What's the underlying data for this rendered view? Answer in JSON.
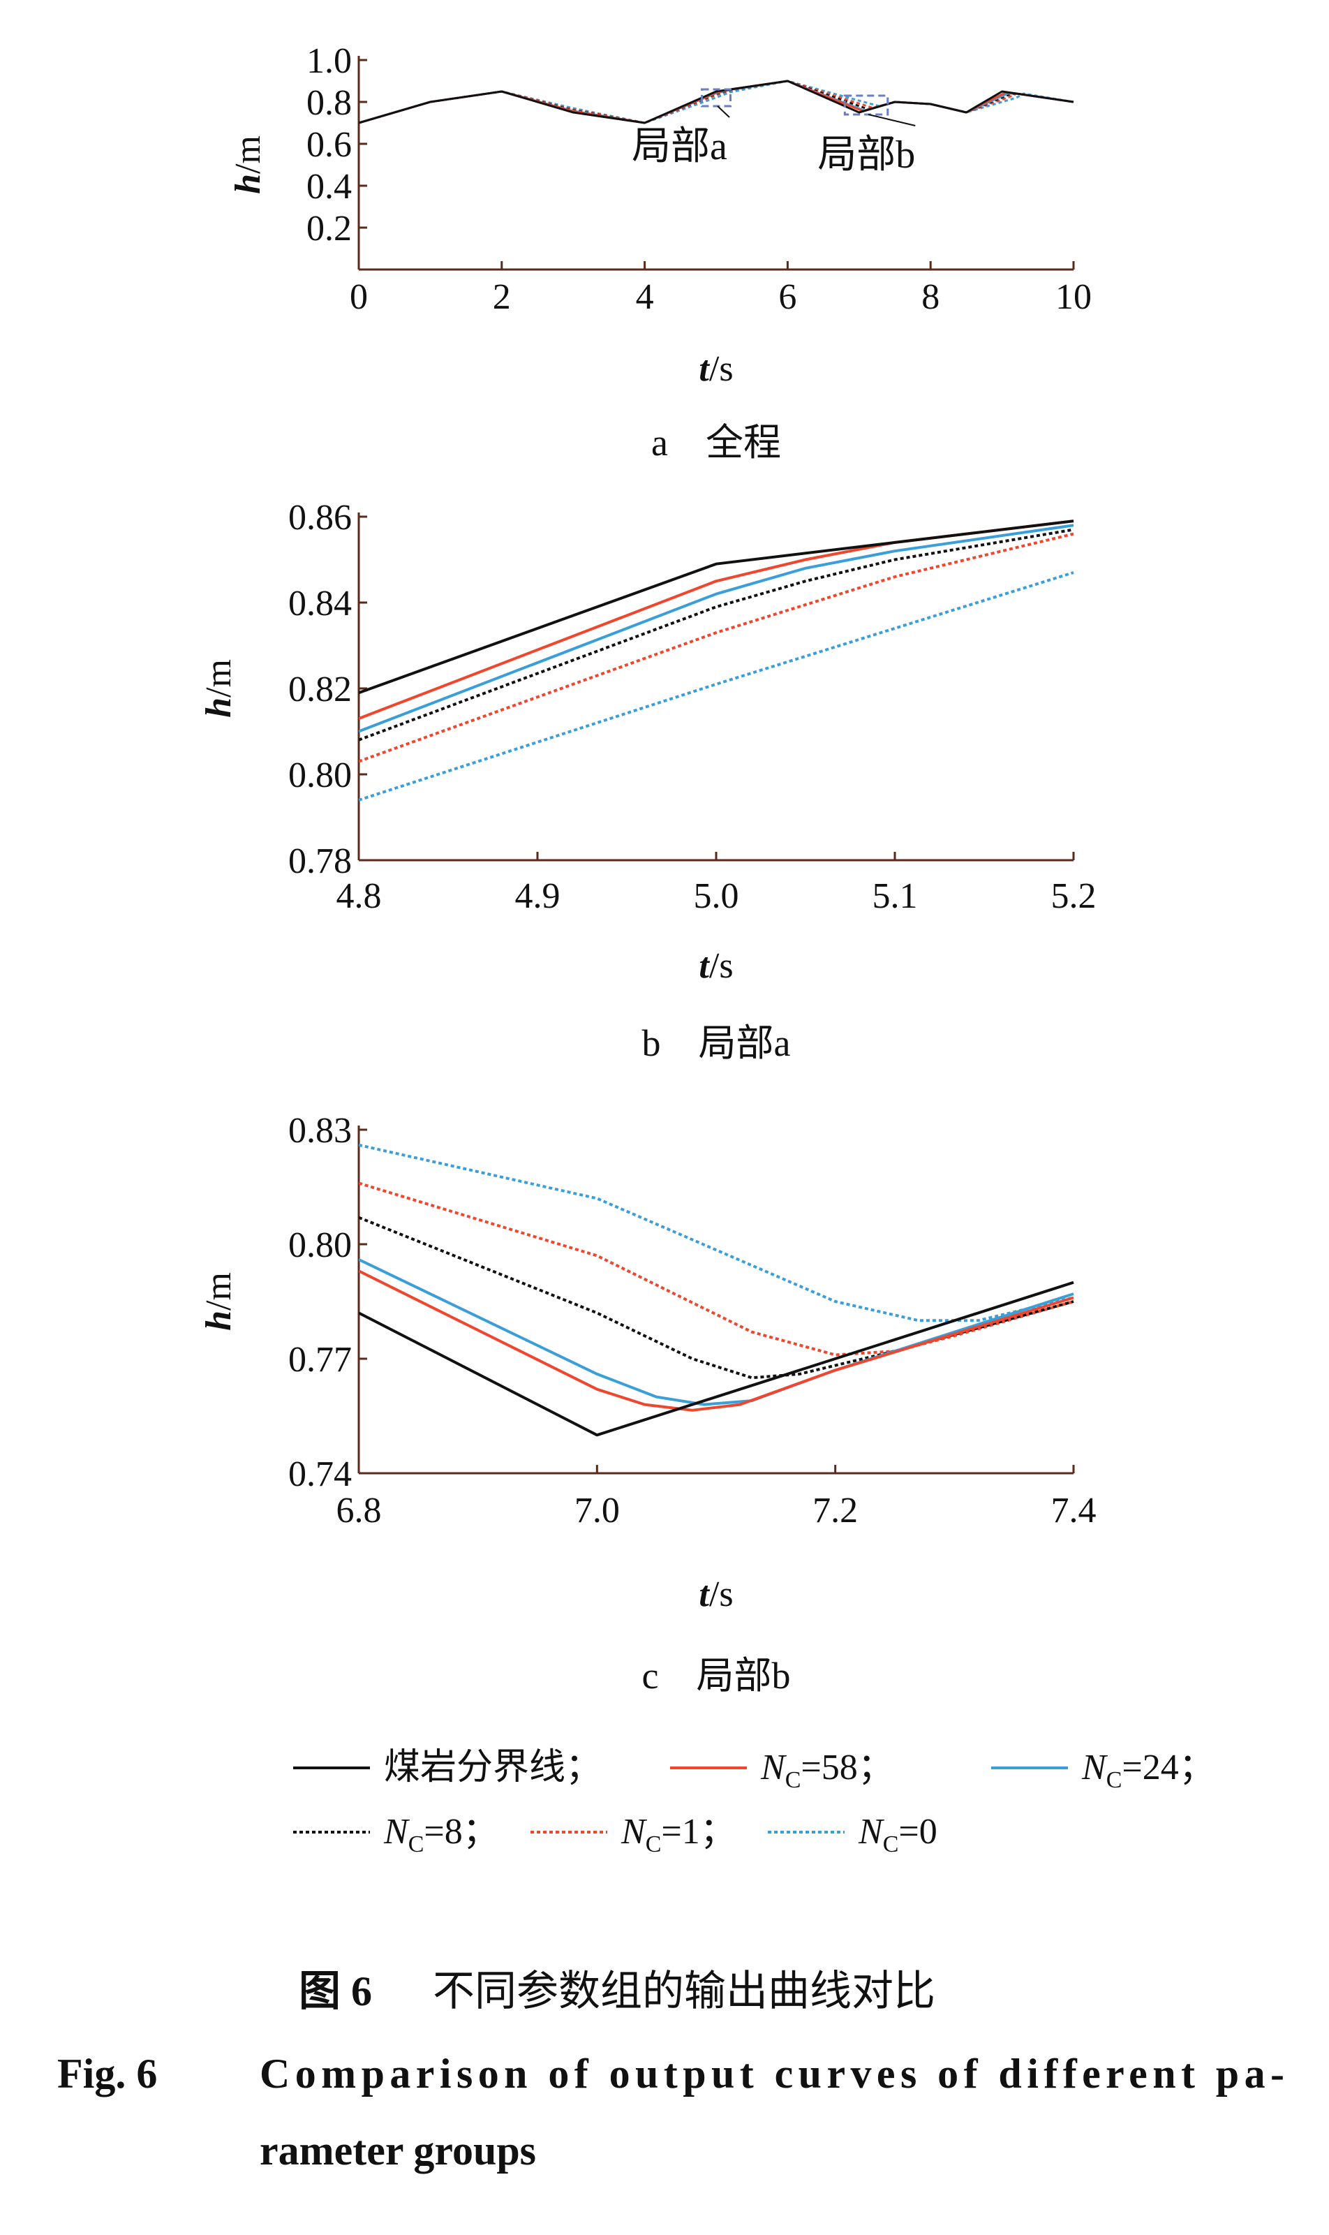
{
  "colors": {
    "boundary": "#111111",
    "n58": "#f0462d",
    "n24": "#3a9fd8",
    "n8": "#111111",
    "n1": "#f0462d",
    "n0": "#3a9fd8",
    "axis": "#5a2a1a",
    "box": "#6a7fc0"
  },
  "series_meta": [
    {
      "key": "boundary",
      "name": "煤岩分界线",
      "suffix": "；",
      "color": "#111111",
      "dashed": false
    },
    {
      "key": "n58",
      "name": "N",
      "sub": "C",
      "eq": "=58",
      "suffix": "；",
      "color": "#f0462d",
      "dashed": false
    },
    {
      "key": "n24",
      "name": "N",
      "sub": "C",
      "eq": "=24",
      "suffix": "；",
      "color": "#3a9fd8",
      "dashed": false
    },
    {
      "key": "n8",
      "name": "N",
      "sub": "C",
      "eq": "=8",
      "suffix": "；",
      "color": "#111111",
      "dashed": true
    },
    {
      "key": "n1",
      "name": "N",
      "sub": "C",
      "eq": "=1",
      "suffix": "；",
      "color": "#f0462d",
      "dashed": true
    },
    {
      "key": "n0",
      "name": "N",
      "sub": "C",
      "eq": "=0",
      "suffix": "",
      "color": "#3a9fd8",
      "dashed": true
    }
  ],
  "chart_data": [
    {
      "type": "line",
      "caption_letter": "a",
      "caption": "全程",
      "xlabel_var": "t",
      "xlabel_unit": "/s",
      "ylabel_var": "h",
      "ylabel_unit": "/m",
      "xlim": [
        0,
        10
      ],
      "ylim": [
        0,
        1.0
      ],
      "xticks": [
        "0",
        "2",
        "4",
        "6",
        "8",
        "10"
      ],
      "xtick_values": [
        0,
        2,
        4,
        6,
        8,
        10
      ],
      "yticks": [
        "0.2",
        "0.4",
        "0.6",
        "0.8",
        "1.0"
      ],
      "ytick_values": [
        0.2,
        0.4,
        0.6,
        0.8,
        1.0
      ],
      "annotations": [
        {
          "text": "局部a",
          "region": {
            "x": [
              4.8,
              5.2
            ],
            "y": [
              0.78,
              0.86
            ]
          },
          "label_at": {
            "x": 4.6,
            "y": 0.56
          }
        },
        {
          "text": "局部b",
          "region": {
            "x": [
              6.8,
              7.4
            ],
            "y": [
              0.74,
              0.83
            ]
          },
          "label_at": {
            "x": 7.2,
            "y": 0.52
          }
        }
      ],
      "series": [
        {
          "key": "boundary",
          "x": [
            0,
            1,
            2,
            3,
            4,
            5,
            5.2,
            6,
            7,
            7.5,
            8,
            8.5,
            9,
            9.2,
            10
          ],
          "y": [
            0.7,
            0.8,
            0.85,
            0.75,
            0.7,
            0.85,
            0.86,
            0.9,
            0.75,
            0.8,
            0.79,
            0.75,
            0.85,
            0.84,
            0.8
          ]
        },
        {
          "key": "n58",
          "x": [
            0,
            1,
            2,
            3,
            4,
            5,
            5.2,
            6,
            7.05,
            7.5,
            8,
            8.5,
            9.05,
            9.2,
            10
          ],
          "y": [
            0.7,
            0.8,
            0.85,
            0.755,
            0.7,
            0.845,
            0.86,
            0.9,
            0.757,
            0.8,
            0.79,
            0.75,
            0.845,
            0.84,
            0.8
          ]
        },
        {
          "key": "n24",
          "x": [
            0,
            1,
            2,
            3,
            4,
            5,
            5.2,
            6,
            7.08,
            7.5,
            8,
            8.5,
            9.08,
            9.2,
            10
          ],
          "y": [
            0.7,
            0.8,
            0.85,
            0.757,
            0.7,
            0.842,
            0.858,
            0.9,
            0.758,
            0.8,
            0.79,
            0.75,
            0.84,
            0.84,
            0.8
          ]
        },
        {
          "key": "n8",
          "x": [
            0,
            1,
            2,
            3,
            4,
            5,
            5.2,
            6,
            7.13,
            7.5,
            8,
            8.5,
            9.1,
            9.2,
            10
          ],
          "y": [
            0.7,
            0.8,
            0.85,
            0.76,
            0.7,
            0.839,
            0.857,
            0.9,
            0.765,
            0.8,
            0.79,
            0.75,
            0.835,
            0.84,
            0.8
          ]
        },
        {
          "key": "n1",
          "x": [
            0,
            1,
            2,
            3,
            4,
            5,
            5.2,
            6,
            7.2,
            7.5,
            8,
            8.5,
            9.15,
            9.2,
            10
          ],
          "y": [
            0.7,
            0.8,
            0.85,
            0.765,
            0.7,
            0.833,
            0.856,
            0.9,
            0.771,
            0.8,
            0.79,
            0.75,
            0.83,
            0.84,
            0.8
          ]
        },
        {
          "key": "n0",
          "x": [
            0,
            1,
            2,
            3,
            4,
            5,
            5.2,
            6,
            7.28,
            7.5,
            8,
            8.5,
            9.2,
            9.3,
            10
          ],
          "y": [
            0.7,
            0.8,
            0.85,
            0.77,
            0.7,
            0.821,
            0.847,
            0.9,
            0.78,
            0.8,
            0.79,
            0.75,
            0.82,
            0.84,
            0.8
          ]
        }
      ]
    },
    {
      "type": "line",
      "caption_letter": "b",
      "caption": "局部a",
      "xlabel_var": "t",
      "xlabel_unit": "/s",
      "ylabel_var": "h",
      "ylabel_unit": "/m",
      "xlim": [
        4.8,
        5.2
      ],
      "ylim": [
        0.78,
        0.86
      ],
      "xticks": [
        "4.8",
        "4.9",
        "5.0",
        "5.1",
        "5.2"
      ],
      "xtick_values": [
        4.8,
        4.9,
        5.0,
        5.1,
        5.2
      ],
      "yticks": [
        "0.78",
        "0.80",
        "0.82",
        "0.84",
        "0.86"
      ],
      "ytick_values": [
        0.78,
        0.8,
        0.82,
        0.84,
        0.86
      ],
      "series": [
        {
          "key": "boundary",
          "x": [
            4.8,
            5.0,
            5.2
          ],
          "y": [
            0.819,
            0.849,
            0.859
          ]
        },
        {
          "key": "n58",
          "x": [
            4.8,
            5.0,
            5.05,
            5.1,
            5.2
          ],
          "y": [
            0.813,
            0.845,
            0.85,
            0.854,
            0.859
          ]
        },
        {
          "key": "n24",
          "x": [
            4.8,
            5.0,
            5.05,
            5.1,
            5.2
          ],
          "y": [
            0.81,
            0.842,
            0.848,
            0.852,
            0.858
          ]
        },
        {
          "key": "n8",
          "x": [
            4.8,
            5.0,
            5.05,
            5.1,
            5.2
          ],
          "y": [
            0.808,
            0.839,
            0.845,
            0.85,
            0.857
          ]
        },
        {
          "key": "n1",
          "x": [
            4.8,
            5.0,
            5.1,
            5.2
          ],
          "y": [
            0.803,
            0.833,
            0.846,
            0.856
          ]
        },
        {
          "key": "n0",
          "x": [
            4.8,
            5.0,
            5.1,
            5.2
          ],
          "y": [
            0.794,
            0.821,
            0.834,
            0.847
          ]
        }
      ]
    },
    {
      "type": "line",
      "caption_letter": "c",
      "caption": "局部b",
      "xlabel_var": "t",
      "xlabel_unit": "/s",
      "ylabel_var": "h",
      "ylabel_unit": "/m",
      "xlim": [
        6.8,
        7.4
      ],
      "ylim": [
        0.74,
        0.83
      ],
      "xticks": [
        "6.8",
        "7.0",
        "7.2",
        "7.4"
      ],
      "xtick_values": [
        6.8,
        7.0,
        7.2,
        7.4
      ],
      "yticks": [
        "0.74",
        "0.77",
        "0.80",
        "0.83"
      ],
      "ytick_values": [
        0.74,
        0.77,
        0.8,
        0.83
      ],
      "series": [
        {
          "key": "boundary",
          "x": [
            6.8,
            7.0,
            7.4
          ],
          "y": [
            0.782,
            0.75,
            0.79
          ]
        },
        {
          "key": "n58",
          "x": [
            6.8,
            7.0,
            7.04,
            7.08,
            7.12,
            7.2,
            7.4
          ],
          "y": [
            0.793,
            0.762,
            0.758,
            0.7565,
            0.758,
            0.767,
            0.786
          ]
        },
        {
          "key": "n24",
          "x": [
            6.8,
            7.0,
            7.05,
            7.09,
            7.13,
            7.2,
            7.4
          ],
          "y": [
            0.796,
            0.766,
            0.76,
            0.758,
            0.759,
            0.767,
            0.787
          ]
        },
        {
          "key": "n8",
          "x": [
            6.8,
            7.0,
            7.08,
            7.13,
            7.17,
            7.25,
            7.4
          ],
          "y": [
            0.807,
            0.782,
            0.77,
            0.765,
            0.766,
            0.772,
            0.785
          ]
        },
        {
          "key": "n1",
          "x": [
            6.8,
            7.0,
            7.13,
            7.2,
            7.25,
            7.3,
            7.4
          ],
          "y": [
            0.816,
            0.797,
            0.777,
            0.771,
            0.772,
            0.776,
            0.785
          ]
        },
        {
          "key": "n0",
          "x": [
            6.8,
            7.0,
            7.2,
            7.27,
            7.32,
            7.4
          ],
          "y": [
            0.826,
            0.812,
            0.785,
            0.78,
            0.78,
            0.786
          ]
        }
      ]
    }
  ],
  "figure": {
    "title_cn_num": "图 6",
    "title_cn": "不同参数组的输出曲线对比",
    "title_en_num": "Fig. 6",
    "title_en_line1": "Comparison of output curves of different pa-",
    "title_en_line2": "rameter groups"
  }
}
